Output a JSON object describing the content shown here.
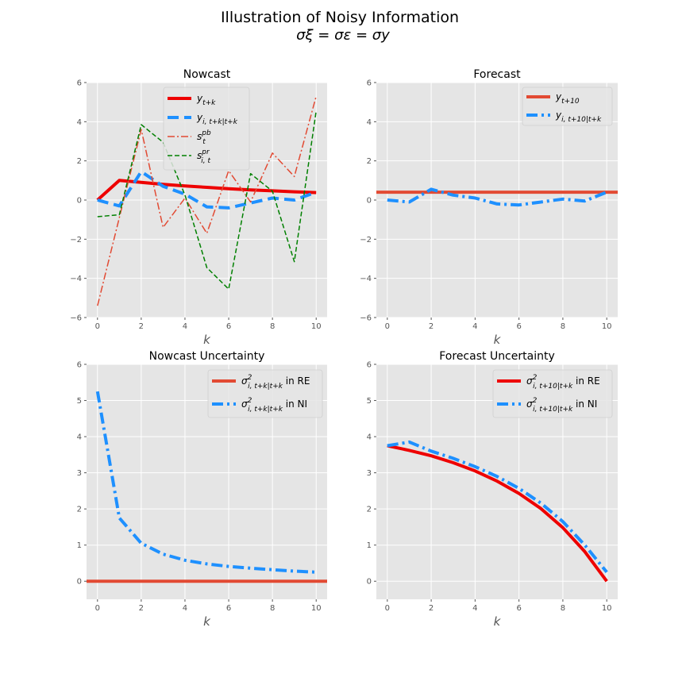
{
  "figure": {
    "title": "Illustration of Noisy Information",
    "subtitle": "σξ = σε = σy"
  },
  "chart_data": [
    {
      "type": "line",
      "title": "Nowcast",
      "xlabel": "k",
      "ylabel": "",
      "xlim": [
        -0.5,
        10.5
      ],
      "ylim": [
        -6,
        6
      ],
      "xticks": [
        0,
        2,
        4,
        6,
        8,
        10
      ],
      "yticks": [
        -6,
        -4,
        -2,
        0,
        2,
        4,
        6
      ],
      "grid": true,
      "legend_position": "top-center",
      "series": [
        {
          "name": "y_{t+k}",
          "label_main": "y",
          "label_sub": "t+k",
          "label_sup": "",
          "color": "#ee0000",
          "width": 4,
          "dash": "",
          "x": [
            0,
            1,
            2,
            3,
            4,
            5,
            6,
            7,
            8,
            9,
            10
          ],
          "values": [
            0.0,
            1.0,
            0.9,
            0.8,
            0.72,
            0.65,
            0.58,
            0.52,
            0.47,
            0.42,
            0.38
          ]
        },
        {
          "name": "y_{i,t+k|t+k}",
          "label_main": "y",
          "label_sub": "i, t+k|t+k",
          "label_sup": "",
          "color": "#1e90ff",
          "width": 4,
          "dash": "14 7",
          "x": [
            0,
            1,
            2,
            3,
            4,
            5,
            6,
            7,
            8,
            9,
            10
          ],
          "values": [
            0.0,
            -0.3,
            1.45,
            0.7,
            0.3,
            -0.35,
            -0.4,
            -0.15,
            0.1,
            0.0,
            0.4
          ]
        },
        {
          "name": "s_t^{pb}",
          "label_main": "s",
          "label_sub": "t",
          "label_sup": "pb",
          "color": "#e24a33",
          "width": 1.5,
          "dash": "9 3 2 3",
          "x": [
            0,
            1,
            2,
            3,
            4,
            5,
            6,
            7,
            8,
            9,
            10
          ],
          "values": [
            -5.4,
            -0.9,
            3.6,
            -1.4,
            0.1,
            -1.7,
            1.5,
            -0.1,
            2.4,
            1.2,
            5.3
          ]
        },
        {
          "name": "s_{i,t}^{pr}",
          "label_main": "s",
          "label_sub": "i, t",
          "label_sup": "pr",
          "color": "#008000",
          "width": 1.5,
          "dash": "6 3",
          "x": [
            0,
            1,
            2,
            3,
            4,
            5,
            6,
            7,
            8,
            9,
            10
          ],
          "values": [
            -0.85,
            -0.75,
            3.85,
            2.95,
            0.25,
            -3.45,
            -4.55,
            1.35,
            0.45,
            -3.15,
            4.55
          ]
        }
      ]
    },
    {
      "type": "line",
      "title": "Forecast",
      "xlabel": "k",
      "ylabel": "",
      "xlim": [
        -0.5,
        10.5
      ],
      "ylim": [
        -6,
        6
      ],
      "xticks": [
        0,
        2,
        4,
        6,
        8,
        10
      ],
      "yticks": [
        -6,
        -4,
        -2,
        0,
        2,
        4,
        6
      ],
      "grid": true,
      "legend_position": "top-right",
      "series": [
        {
          "name": "y_{t+10}",
          "label_main": "y",
          "label_sub": "t+10",
          "label_sup": "",
          "color": "#e24a33",
          "width": 4,
          "dash": "",
          "x": [
            -0.5,
            10.5
          ],
          "values": [
            0.4,
            0.4
          ]
        },
        {
          "name": "y_{i,t+10|t+k}",
          "label_main": "y",
          "label_sub": "i, t+10|t+k",
          "label_sup": "",
          "color": "#1e90ff",
          "width": 4,
          "dash": "14 5 3 5",
          "x": [
            0,
            1,
            2,
            3,
            4,
            5,
            6,
            7,
            8,
            9,
            10
          ],
          "values": [
            0.0,
            -0.1,
            0.55,
            0.25,
            0.1,
            -0.2,
            -0.25,
            -0.1,
            0.05,
            -0.05,
            0.4
          ]
        }
      ]
    },
    {
      "type": "line",
      "title": "Nowcast Uncertainty",
      "xlabel": "k",
      "ylabel": "",
      "xlim": [
        -0.5,
        10.5
      ],
      "ylim": [
        -0.5,
        6
      ],
      "xticks": [
        0,
        2,
        4,
        6,
        8,
        10
      ],
      "yticks": [
        0,
        1,
        2,
        3,
        4,
        5,
        6
      ],
      "grid": true,
      "legend_position": "top-right",
      "series": [
        {
          "name": "σ²_{i,t+k|t+k} in RE",
          "label_main": "σ",
          "label_sub": "i, t+k|t+k",
          "label_sup": "2",
          "label_suffix": " in RE",
          "color": "#e24a33",
          "width": 4,
          "dash": "",
          "x": [
            -0.5,
            10.5
          ],
          "values": [
            0.0,
            0.0
          ]
        },
        {
          "name": "σ²_{i,t+k|t+k} in NI",
          "label_main": "σ",
          "label_sub": "i, t+k|t+k",
          "label_sup": "2",
          "label_suffix": " in NI",
          "color": "#1e90ff",
          "width": 4,
          "dash": "14 5 3 5",
          "x": [
            0,
            1,
            2,
            3,
            4,
            5,
            6,
            7,
            8,
            9,
            10
          ],
          "values": [
            5.25,
            1.75,
            1.05,
            0.75,
            0.58,
            0.48,
            0.41,
            0.36,
            0.32,
            0.28,
            0.25
          ]
        }
      ]
    },
    {
      "type": "line",
      "title": "Forecast Uncertainty",
      "xlabel": "k",
      "ylabel": "",
      "xlim": [
        -0.5,
        10.5
      ],
      "ylim": [
        -0.5,
        6
      ],
      "xticks": [
        0,
        2,
        4,
        6,
        8,
        10
      ],
      "yticks": [
        0,
        1,
        2,
        3,
        4,
        5,
        6
      ],
      "grid": true,
      "legend_position": "top-right",
      "series": [
        {
          "name": "σ²_{i,t+10|t+k} in RE",
          "label_main": "σ",
          "label_sub": "i, t+10|t+k",
          "label_sup": "2",
          "label_suffix": " in RE",
          "color": "#ee0000",
          "width": 4,
          "dash": "",
          "x": [
            0,
            1,
            2,
            3,
            4,
            5,
            6,
            7,
            8,
            9,
            10
          ],
          "values": [
            3.75,
            3.62,
            3.47,
            3.28,
            3.05,
            2.77,
            2.43,
            2.01,
            1.48,
            0.82,
            0.0
          ]
        },
        {
          "name": "σ²_{i,t+10|t+k} in NI",
          "label_main": "σ",
          "label_sub": "i, t+10|t+k",
          "label_sup": "2",
          "label_suffix": " in NI",
          "color": "#1e90ff",
          "width": 4,
          "dash": "14 5 3 5",
          "x": [
            0,
            1,
            2,
            3,
            4,
            5,
            6,
            7,
            8,
            9,
            10
          ],
          "values": [
            3.75,
            3.85,
            3.6,
            3.4,
            3.17,
            2.9,
            2.57,
            2.16,
            1.65,
            1.0,
            0.25
          ]
        }
      ]
    }
  ]
}
